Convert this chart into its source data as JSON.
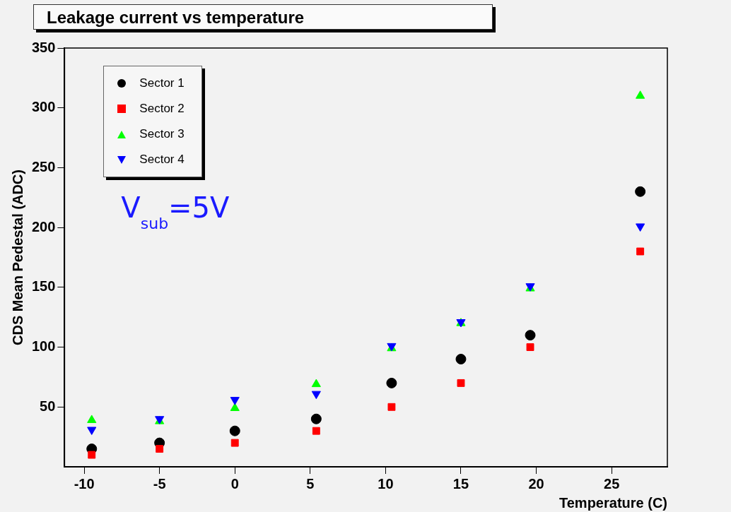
{
  "chart_data": {
    "type": "scatter",
    "title": "Leakage current vs temperature",
    "xlabel": "Temperature (C)",
    "ylabel": "CDS Mean Pedestal (ADC)",
    "annotations": [
      "V$_{sub}$=5V"
    ],
    "x": [
      -9.5,
      -5,
      0,
      5.4,
      10.4,
      15,
      19.6,
      26.9
    ],
    "series": [
      {
        "name": "Sector 1",
        "color": "#000000",
        "marker": "circle",
        "values": [
          15,
          20,
          30,
          40,
          70,
          90,
          110,
          230
        ]
      },
      {
        "name": "Sector 2",
        "color": "#ff0000",
        "marker": "square",
        "values": [
          10,
          15,
          20,
          30,
          50,
          70,
          100,
          180
        ]
      },
      {
        "name": "Sector 3",
        "color": "#00ff00",
        "marker": "triangle",
        "values": [
          39,
          38,
          49,
          69,
          99,
          120,
          149,
          310
        ]
      },
      {
        "name": "Sector 4",
        "color": "#0000ff",
        "marker": "triangle-down",
        "values": [
          31,
          40,
          56,
          61,
          101,
          121,
          151,
          201
        ]
      }
    ],
    "xlim": [
      -11.3,
      28.7
    ],
    "xticks": [
      -10,
      -5,
      0,
      5,
      10,
      15,
      20,
      25
    ],
    "ylim": [
      0,
      350
    ],
    "yticks": [
      50,
      100,
      150,
      200,
      250,
      300,
      350
    ],
    "grid": false,
    "legend": "top left"
  }
}
